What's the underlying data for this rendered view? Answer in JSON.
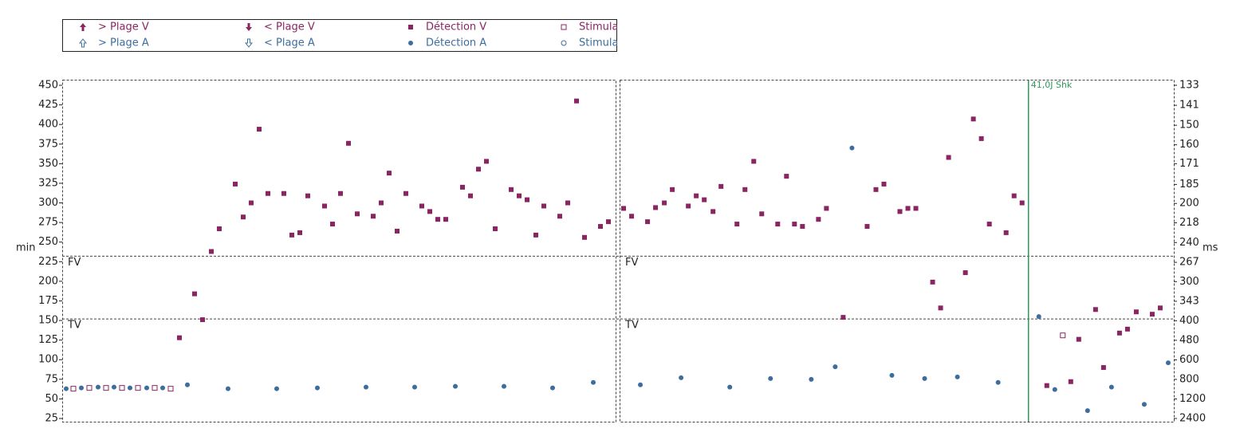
{
  "chart_data": {
    "type": "scatter",
    "ylabel": "min",
    "y2label": "ms",
    "ylim": [
      25,
      450
    ],
    "yticks": [
      450,
      425,
      400,
      375,
      350,
      325,
      300,
      275,
      250,
      225,
      200,
      175,
      150,
      125,
      100,
      75,
      50,
      25
    ],
    "y2scale": "reciprocal",
    "y2lim": [
      2400,
      133
    ],
    "y2ticks": [
      133,
      141,
      150,
      160,
      171,
      185,
      200,
      218,
      240,
      267,
      300,
      343,
      400,
      480,
      600,
      800,
      1200,
      2400
    ],
    "xlim": [
      0,
      69.4
    ],
    "zones": [
      {
        "label": "FV",
        "value": 232
      },
      {
        "label": "TV",
        "value": 152
      }
    ],
    "annotations": [
      {
        "panel": 1,
        "x": 51.2,
        "label": "41,0J Shk",
        "color": "#2e9a5a"
      }
    ],
    "series": [
      {
        "name": "> Plage V",
        "color": "#8b2562",
        "marker": "arrow-up",
        "x": [
          [],
          []
        ],
        "values": [
          [],
          []
        ]
      },
      {
        "name": "< Plage V",
        "color": "#8b2562",
        "marker": "arrow-down",
        "x": [
          [],
          []
        ],
        "values": [
          [],
          []
        ]
      },
      {
        "name": "Détection V",
        "color": "#8b2562",
        "marker": "square",
        "x": [
          [
            14.7,
            16.6,
            17.6,
            18.7,
            19.7,
            21.7,
            22.7,
            23.7,
            24.7,
            25.8,
            27.8,
            28.8,
            29.8,
            30.8,
            32.9,
            33.9,
            34.9,
            35.9,
            37,
            39,
            40,
            41,
            42,
            43.1,
            45.1,
            46.1,
            47.1,
            48.1,
            50.2,
            51.2,
            52.2,
            53.2,
            54.3,
            56.3,
            57.3,
            58.3,
            59.4,
            60.4,
            62.4,
            63.4,
            64.5,
            65.5,
            67.5,
            68.5
          ],
          [
            0.5,
            1.5,
            3.5,
            4.5,
            5.6,
            6.6,
            8.6,
            9.6,
            10.6,
            11.7,
            12.7,
            14.7,
            15.7,
            16.8,
            17.8,
            19.8,
            20.9,
            21.9,
            22.9,
            24.9,
            25.9,
            28,
            31,
            32.1,
            33.1,
            35.1,
            36.1,
            37.1,
            39.2,
            40.2,
            41.2,
            43.3,
            44.3,
            45.3,
            46.3,
            48.4,
            49.4,
            50.4,
            53.5,
            56.5,
            57.5,
            59.6,
            60.6,
            62.6,
            63.6,
            64.7,
            66.7,
            67.7
          ]
        ],
        "values": [
          [
            128,
            184,
            151,
            238,
            267,
            324,
            282,
            300,
            394,
            312,
            312,
            259,
            262,
            309,
            296,
            273,
            312,
            376,
            286,
            283,
            300,
            338,
            264,
            312,
            296,
            289,
            279,
            279,
            320,
            309,
            343,
            353,
            267,
            317,
            309,
            304,
            259,
            296,
            283,
            300,
            430,
            256,
            270,
            276
          ],
          [
            293,
            283,
            276,
            294,
            300,
            317,
            296,
            309,
            304,
            289,
            321,
            273,
            317,
            353,
            286,
            273,
            334,
            273,
            270,
            279,
            293,
            154,
            270,
            317,
            324,
            289,
            293,
            293,
            199,
            166,
            358,
            211,
            407,
            382,
            273,
            262,
            309,
            300,
            67,
            72,
            126,
            164,
            90,
            134,
            139,
            161,
            158,
            166
          ]
        ]
      },
      {
        "name": "Stimulation",
        "color": "#8b2562",
        "marker": "square-open",
        "x": [
          [
            1.4,
            3.4,
            5.5,
            7.5,
            9.5,
            11.6,
            13.6
          ],
          [
            55.5
          ]
        ],
        "values": [
          [
            63,
            64,
            64,
            64,
            64,
            64,
            63
          ],
          [
            131
          ]
        ]
      },
      {
        "name": "> Plage A",
        "color": "#3d6d9e",
        "marker": "arrow-up-open",
        "x": [
          [],
          []
        ],
        "values": [
          [],
          []
        ]
      },
      {
        "name": "< Plage A",
        "color": "#3d6d9e",
        "marker": "arrow-down-open",
        "x": [
          [],
          []
        ],
        "values": [
          [],
          []
        ]
      },
      {
        "name": "Détection A",
        "color": "#3d6d9e",
        "marker": "circle",
        "x": [
          [
            0.5,
            2.4,
            4.5,
            6.5,
            8.5,
            10.6,
            12.6,
            15.7,
            20.8,
            26.9,
            32,
            38.1,
            44.2,
            49.3,
            55.4,
            61.5,
            66.6
          ],
          [
            2.6,
            7.7,
            13.8,
            18.9,
            24,
            27,
            29.1,
            34.1,
            38.2,
            42.3,
            47.4,
            52.5,
            54.5,
            58.6,
            61.6,
            65.7,
            68.7
          ]
        ],
        "values": [
          [
            63,
            64,
            65,
            65,
            64,
            64,
            64,
            68,
            63,
            63,
            64,
            65,
            65,
            66,
            66,
            64,
            71
          ],
          [
            68,
            77,
            65,
            76,
            75,
            91,
            370,
            80,
            76,
            78,
            71,
            155,
            62,
            35,
            65,
            43,
            96
          ]
        ]
      },
      {
        "name": "Stimulation",
        "color": "#3d6d9e",
        "marker": "circle-open",
        "x": [
          [],
          []
        ],
        "values": [
          [],
          []
        ]
      }
    ]
  }
}
